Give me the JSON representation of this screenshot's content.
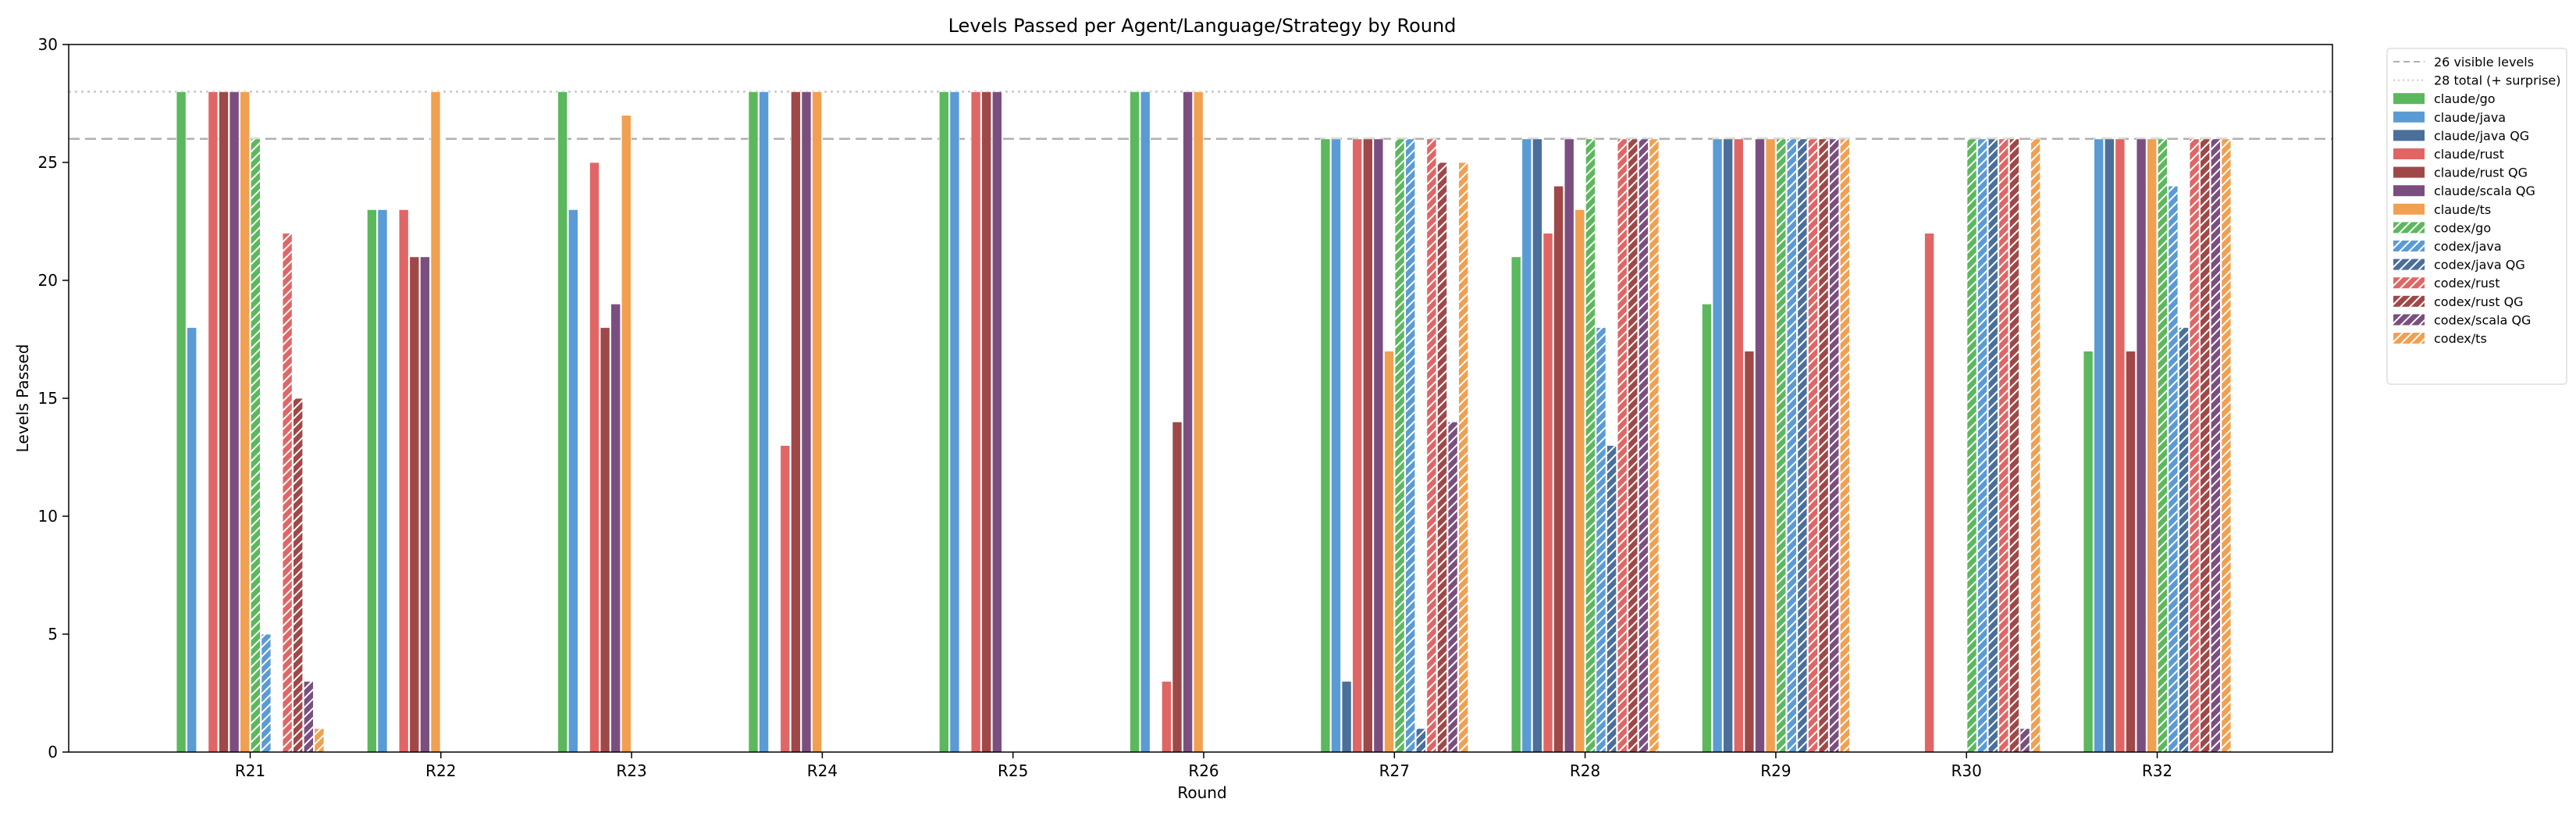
{
  "chart_data": {
    "type": "bar",
    "title": "Levels Passed per Agent/Language/Strategy by Round",
    "xlabel": "Round",
    "ylabel": "Levels Passed",
    "ylim": [
      0,
      30
    ],
    "yticks": [
      0,
      5,
      10,
      15,
      20,
      25,
      30
    ],
    "grid": false,
    "legend_position": "outside-top-right",
    "categories": [
      "R21",
      "R22",
      "R23",
      "R24",
      "R25",
      "R26",
      "R27",
      "R28",
      "R29",
      "R30",
      "R32"
    ],
    "reference_lines": [
      {
        "name": "26 visible levels",
        "y": 26,
        "style": "dashed",
        "color": "#b0b0b0"
      },
      {
        "name": "28 total (+ surprise)",
        "y": 28,
        "style": "dotted",
        "color": "#c8c8c8"
      }
    ],
    "series": [
      {
        "name": "claude/go",
        "color": "#5cb85c",
        "hatch": false,
        "values": [
          28,
          23,
          28,
          28,
          28,
          28,
          26,
          21,
          19,
          null,
          17
        ]
      },
      {
        "name": "claude/java",
        "color": "#5b9bd5",
        "hatch": false,
        "values": [
          18,
          23,
          23,
          28,
          28,
          28,
          26,
          26,
          26,
          null,
          26
        ]
      },
      {
        "name": "claude/java QG",
        "color": "#4a6f9a",
        "hatch": false,
        "values": [
          null,
          null,
          null,
          null,
          null,
          null,
          3,
          26,
          26,
          null,
          26
        ]
      },
      {
        "name": "claude/rust",
        "color": "#e06666",
        "hatch": false,
        "values": [
          28,
          23,
          25,
          13,
          28,
          3,
          26,
          22,
          26,
          22,
          26
        ]
      },
      {
        "name": "claude/rust QG",
        "color": "#a04848",
        "hatch": false,
        "values": [
          28,
          21,
          18,
          28,
          28,
          14,
          26,
          24,
          17,
          null,
          17
        ]
      },
      {
        "name": "claude/scala QG",
        "color": "#7a4f80",
        "hatch": false,
        "values": [
          28,
          21,
          19,
          28,
          28,
          28,
          26,
          26,
          26,
          null,
          26
        ]
      },
      {
        "name": "claude/ts",
        "color": "#f0a050",
        "hatch": false,
        "values": [
          28,
          28,
          27,
          28,
          null,
          28,
          17,
          23,
          26,
          null,
          26
        ]
      },
      {
        "name": "codex/go",
        "color": "#5cb85c",
        "hatch": true,
        "values": [
          26,
          null,
          null,
          null,
          null,
          null,
          26,
          26,
          26,
          26,
          26
        ]
      },
      {
        "name": "codex/java",
        "color": "#5b9bd5",
        "hatch": true,
        "values": [
          5,
          null,
          null,
          null,
          null,
          null,
          26,
          18,
          26,
          26,
          24
        ]
      },
      {
        "name": "codex/java QG",
        "color": "#4a6f9a",
        "hatch": true,
        "values": [
          null,
          null,
          null,
          null,
          null,
          null,
          1,
          13,
          26,
          26,
          18
        ]
      },
      {
        "name": "codex/rust",
        "color": "#e06666",
        "hatch": true,
        "values": [
          22,
          null,
          null,
          null,
          null,
          null,
          26,
          26,
          26,
          26,
          26
        ]
      },
      {
        "name": "codex/rust QG",
        "color": "#a04848",
        "hatch": true,
        "values": [
          15,
          null,
          null,
          null,
          null,
          null,
          25,
          26,
          26,
          26,
          26
        ]
      },
      {
        "name": "codex/scala QG",
        "color": "#7a4f80",
        "hatch": true,
        "values": [
          3,
          null,
          null,
          null,
          null,
          null,
          14,
          26,
          26,
          1,
          26
        ]
      },
      {
        "name": "codex/ts",
        "color": "#f0a050",
        "hatch": true,
        "values": [
          1,
          null,
          null,
          null,
          null,
          null,
          25,
          26,
          26,
          26,
          26
        ]
      }
    ]
  }
}
